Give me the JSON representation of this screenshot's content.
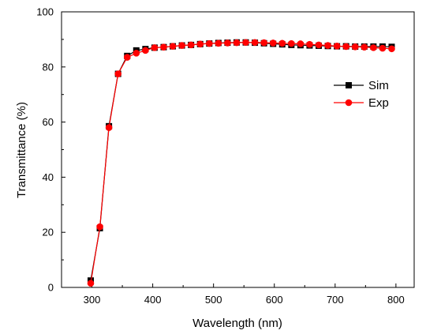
{
  "chart_data": {
    "type": "line",
    "title": "",
    "xlabel": "Wavelength (nm)",
    "ylabel": "Transmittance (%)",
    "xlim": [
      250,
      830
    ],
    "ylim": [
      0,
      100
    ],
    "x_ticks": [
      300,
      400,
      500,
      600,
      700,
      800
    ],
    "y_ticks": [
      0,
      20,
      40,
      60,
      80,
      100
    ],
    "grid": false,
    "legend_position": "right",
    "series": [
      {
        "name": "Sim",
        "color": "#000000",
        "marker": "square",
        "x": [
          298,
          313,
          328,
          343,
          358,
          373,
          388,
          403,
          418,
          433,
          448,
          463,
          478,
          493,
          508,
          523,
          538,
          553,
          568,
          583,
          598,
          613,
          628,
          643,
          658,
          673,
          688,
          703,
          718,
          733,
          748,
          763,
          778,
          793
        ],
        "values": [
          2.5,
          21.5,
          58.5,
          77.5,
          84.0,
          86.0,
          86.5,
          87.0,
          87.2,
          87.5,
          87.8,
          88.0,
          88.3,
          88.5,
          88.7,
          88.8,
          88.9,
          88.9,
          88.8,
          88.6,
          88.4,
          88.2,
          88.0,
          87.9,
          87.8,
          87.7,
          87.6,
          87.5,
          87.5,
          87.4,
          87.4,
          87.4,
          87.4,
          87.3
        ]
      },
      {
        "name": "Exp",
        "color": "#ff0000",
        "marker": "circle",
        "x": [
          298,
          313,
          328,
          343,
          358,
          373,
          388,
          403,
          418,
          433,
          448,
          463,
          478,
          493,
          508,
          523,
          538,
          553,
          568,
          583,
          598,
          613,
          628,
          643,
          658,
          673,
          688,
          703,
          718,
          733,
          748,
          763,
          778,
          793
        ],
        "values": [
          1.5,
          22.0,
          58.0,
          77.5,
          83.5,
          85.0,
          86.0,
          87.0,
          87.2,
          87.5,
          87.8,
          88.0,
          88.3,
          88.5,
          88.6,
          88.7,
          88.8,
          88.9,
          88.9,
          88.8,
          88.7,
          88.6,
          88.5,
          88.4,
          88.2,
          88.0,
          87.8,
          87.6,
          87.4,
          87.3,
          87.2,
          87.0,
          86.8,
          86.6
        ]
      }
    ]
  }
}
